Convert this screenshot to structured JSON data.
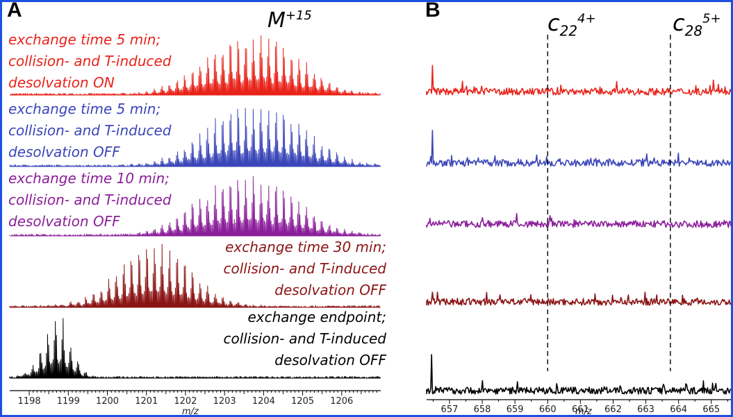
{
  "panelA": {
    "letter": "A",
    "peak_label_main": "M",
    "peak_label_sup": "+15",
    "xlabel": "m/z",
    "xticks": [
      "1198",
      "1199",
      "1200",
      "1201",
      "1202",
      "1203",
      "1204",
      "1205",
      "1206"
    ],
    "traces": [
      {
        "color": "#e8231a",
        "lines": [
          "exchange time 5 min;",
          "collision- and T-induced",
          "desolvation ON"
        ],
        "align": "left"
      },
      {
        "color": "#3b46b8",
        "lines": [
          "exchange time 5 min;",
          "collision- and T-induced",
          "desolvation OFF"
        ],
        "align": "left"
      },
      {
        "color": "#8b1e9a",
        "lines": [
          "exchange time 10 min;",
          "collision- and T-induced",
          "desolvation OFF"
        ],
        "align": "left"
      },
      {
        "color": "#8b1414",
        "lines": [
          "exchange time 30 min;",
          "collision- and T-induced",
          "desolvation OFF"
        ],
        "align": "right"
      },
      {
        "color": "#000000",
        "lines": [
          "exchange endpoint;",
          "collision- and T-induced",
          "desolvation OFF"
        ],
        "align": "right"
      }
    ]
  },
  "panelB": {
    "letter": "B",
    "ion1_base": "c",
    "ion1_sub": "22",
    "ion1_sup": "4+",
    "ion2_base": "c",
    "ion2_sub": "28",
    "ion2_sup": "5+",
    "xlabel": "m/z",
    "xticks": [
      "657",
      "658",
      "659",
      "660",
      "661",
      "662",
      "663",
      "664",
      "665"
    ]
  },
  "chart_data": [
    {
      "type": "line",
      "panel": "A",
      "xlabel": "m/z",
      "xlim": [
        1197.5,
        1207.0
      ],
      "series": [
        {
          "name": "exchange time 5 min; collision- and T-induced desolvation ON",
          "color": "#e8231a",
          "center": 1203.7,
          "width": 1.25,
          "relative_height": 1.0
        },
        {
          "name": "exchange time 5 min; collision- and T-induced desolvation OFF",
          "color": "#3b46b8",
          "center": 1203.8,
          "width": 1.3,
          "relative_height": 0.95
        },
        {
          "name": "exchange time 10 min; collision- and T-induced desolvation OFF",
          "color": "#8b1e9a",
          "center": 1203.6,
          "width": 1.3,
          "relative_height": 0.95
        },
        {
          "name": "exchange time 30 min; collision- and T-induced desolvation OFF",
          "color": "#8b1414",
          "center": 1201.2,
          "width": 0.9,
          "relative_height": 1.0
        },
        {
          "name": "exchange endpoint; collision- and T-induced desolvation OFF",
          "color": "#000000",
          "center": 1198.7,
          "width": 0.35,
          "relative_height": 1.0
        }
      ]
    },
    {
      "type": "line",
      "panel": "B",
      "xlabel": "m/z",
      "xlim": [
        656.3,
        665.6
      ],
      "markers": [
        {
          "label": "c22 4+",
          "x": 660.0
        },
        {
          "label": "c28 5+",
          "x": 663.75
        }
      ],
      "series": [
        {
          "color": "#e8231a"
        },
        {
          "color": "#3b46b8"
        },
        {
          "color": "#8b1e9a"
        },
        {
          "color": "#8b1414"
        },
        {
          "color": "#000000"
        }
      ]
    }
  ]
}
